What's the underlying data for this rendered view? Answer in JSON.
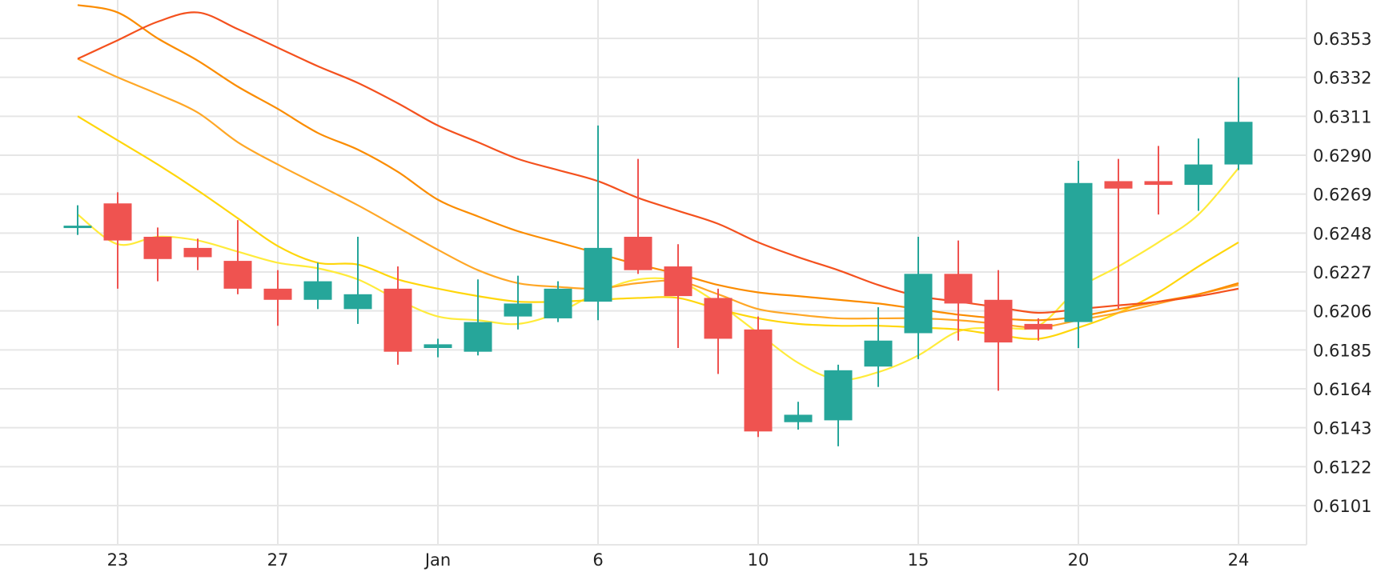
{
  "chart_data": {
    "type": "candlestick",
    "title": "",
    "xlabel": "",
    "ylabel": "",
    "ylim": [
      0.608,
      0.637
    ],
    "grid": true,
    "y_axis_position": "right",
    "y_ticks": [
      "0.6353",
      "0.6332",
      "0.6311",
      "0.6290",
      "0.6269",
      "0.6248",
      "0.6227",
      "0.6206",
      "0.6185",
      "0.6164",
      "0.6143",
      "0.6122",
      "0.6101"
    ],
    "x_tick_labels": [
      {
        "slot": 1,
        "label": "23"
      },
      {
        "slot": 5,
        "label": "27"
      },
      {
        "slot": 9,
        "label": "Jan"
      },
      {
        "slot": 13,
        "label": "6"
      },
      {
        "slot": 17,
        "label": "10"
      },
      {
        "slot": 21,
        "label": "15"
      },
      {
        "slot": 25,
        "label": "20"
      },
      {
        "slot": 29,
        "label": "24"
      }
    ],
    "slot_count": 30,
    "colors": {
      "up": "#26a69a",
      "down": "#ef5350",
      "grid": "#e6e6e6",
      "text": "#222222"
    },
    "candles": [
      {
        "slot": 0,
        "open": 0.6252,
        "high": 0.6263,
        "low": 0.6247,
        "close": 0.6252
      },
      {
        "slot": 1,
        "open": 0.6264,
        "high": 0.627,
        "low": 0.6218,
        "close": 0.6244
      },
      {
        "slot": 2,
        "open": 0.6246,
        "high": 0.6251,
        "low": 0.6222,
        "close": 0.6234
      },
      {
        "slot": 3,
        "open": 0.624,
        "high": 0.6245,
        "low": 0.6228,
        "close": 0.6235
      },
      {
        "slot": 4,
        "open": 0.6233,
        "high": 0.6255,
        "low": 0.6215,
        "close": 0.6218
      },
      {
        "slot": 5,
        "open": 0.6218,
        "high": 0.6228,
        "low": 0.6198,
        "close": 0.6212
      },
      {
        "slot": 6,
        "open": 0.6212,
        "high": 0.6232,
        "low": 0.6207,
        "close": 0.6222
      },
      {
        "slot": 7,
        "open": 0.6207,
        "high": 0.6246,
        "low": 0.6199,
        "close": 0.6215
      },
      {
        "slot": 8,
        "open": 0.6218,
        "high": 0.623,
        "low": 0.6177,
        "close": 0.6184
      },
      {
        "slot": 9,
        "open": 0.6186,
        "high": 0.6191,
        "low": 0.6181,
        "close": 0.6188
      },
      {
        "slot": 10,
        "open": 0.6184,
        "high": 0.6223,
        "low": 0.6182,
        "close": 0.62
      },
      {
        "slot": 11,
        "open": 0.6203,
        "high": 0.6225,
        "low": 0.6196,
        "close": 0.621
      },
      {
        "slot": 12,
        "open": 0.6202,
        "high": 0.6222,
        "low": 0.62,
        "close": 0.6218
      },
      {
        "slot": 13,
        "open": 0.6211,
        "high": 0.6306,
        "low": 0.6201,
        "close": 0.624
      },
      {
        "slot": 14,
        "open": 0.6246,
        "high": 0.6288,
        "low": 0.6226,
        "close": 0.6228
      },
      {
        "slot": 15,
        "open": 0.623,
        "high": 0.6242,
        "low": 0.6186,
        "close": 0.6214
      },
      {
        "slot": 16,
        "open": 0.6213,
        "high": 0.6218,
        "low": 0.6172,
        "close": 0.6191
      },
      {
        "slot": 17,
        "open": 0.6196,
        "high": 0.6203,
        "low": 0.6138,
        "close": 0.6141
      },
      {
        "slot": 18,
        "open": 0.6146,
        "high": 0.6157,
        "low": 0.6142,
        "close": 0.615
      },
      {
        "slot": 19,
        "open": 0.6147,
        "high": 0.6177,
        "low": 0.6133,
        "close": 0.6174
      },
      {
        "slot": 20,
        "open": 0.6176,
        "high": 0.6208,
        "low": 0.6165,
        "close": 0.619
      },
      {
        "slot": 21,
        "open": 0.6194,
        "high": 0.6246,
        "low": 0.618,
        "close": 0.6226
      },
      {
        "slot": 22,
        "open": 0.6226,
        "high": 0.6244,
        "low": 0.619,
        "close": 0.621
      },
      {
        "slot": 23,
        "open": 0.6212,
        "high": 0.6228,
        "low": 0.6163,
        "close": 0.6189
      },
      {
        "slot": 24,
        "open": 0.6199,
        "high": 0.6202,
        "low": 0.619,
        "close": 0.6196
      },
      {
        "slot": 25,
        "open": 0.62,
        "high": 0.6287,
        "low": 0.6186,
        "close": 0.6275
      },
      {
        "slot": 26,
        "open": 0.6276,
        "high": 0.6288,
        "low": 0.6207,
        "close": 0.6272
      },
      {
        "slot": 27,
        "open": 0.6276,
        "high": 0.6295,
        "low": 0.6258,
        "close": 0.6274
      },
      {
        "slot": 28,
        "open": 0.6274,
        "high": 0.6299,
        "low": 0.626,
        "close": 0.6285
      },
      {
        "slot": 29,
        "open": 0.6285,
        "high": 0.6332,
        "low": 0.6282,
        "close": 0.6308
      }
    ],
    "lines": [
      {
        "color": "#ffeb3b",
        "values": [
          [
            0,
            0.6258
          ],
          [
            1,
            0.6242
          ],
          [
            2,
            0.6246
          ],
          [
            3,
            0.6244
          ],
          [
            4,
            0.6238
          ],
          [
            5,
            0.6232
          ],
          [
            6,
            0.6229
          ],
          [
            7,
            0.6223
          ],
          [
            8,
            0.6212
          ],
          [
            9,
            0.6203
          ],
          [
            10,
            0.6201
          ],
          [
            11,
            0.6199
          ],
          [
            12,
            0.6205
          ],
          [
            13,
            0.6216
          ],
          [
            14,
            0.6223
          ],
          [
            15,
            0.6222
          ],
          [
            16,
            0.621
          ],
          [
            17,
            0.6194
          ],
          [
            18,
            0.6178
          ],
          [
            19,
            0.6169
          ],
          [
            20,
            0.6173
          ],
          [
            21,
            0.6182
          ],
          [
            22,
            0.6195
          ],
          [
            23,
            0.6197
          ],
          [
            24,
            0.6198
          ],
          [
            25,
            0.6218
          ],
          [
            26,
            0.623
          ],
          [
            27,
            0.6243
          ],
          [
            28,
            0.6258
          ],
          [
            29,
            0.6283
          ]
        ]
      },
      {
        "color": "#ffd60a",
        "values": [
          [
            0,
            0.6311
          ],
          [
            1,
            0.6298
          ],
          [
            2,
            0.6285
          ],
          [
            3,
            0.6271
          ],
          [
            4,
            0.6256
          ],
          [
            5,
            0.6241
          ],
          [
            6,
            0.6232
          ],
          [
            7,
            0.6231
          ],
          [
            8,
            0.6223
          ],
          [
            9,
            0.6218
          ],
          [
            10,
            0.6214
          ],
          [
            11,
            0.6211
          ],
          [
            12,
            0.6211
          ],
          [
            13,
            0.6212
          ],
          [
            14,
            0.6213
          ],
          [
            15,
            0.6213
          ],
          [
            16,
            0.6207
          ],
          [
            17,
            0.6202
          ],
          [
            18,
            0.6199
          ],
          [
            19,
            0.6198
          ],
          [
            20,
            0.6198
          ],
          [
            21,
            0.6197
          ],
          [
            22,
            0.6196
          ],
          [
            23,
            0.6193
          ],
          [
            24,
            0.6191
          ],
          [
            25,
            0.6197
          ],
          [
            26,
            0.6205
          ],
          [
            27,
            0.6216
          ],
          [
            28,
            0.623
          ],
          [
            29,
            0.6243
          ]
        ]
      },
      {
        "color": "#ffa726",
        "values": [
          [
            0,
            0.6342
          ],
          [
            1,
            0.6332
          ],
          [
            2,
            0.6323
          ],
          [
            3,
            0.6313
          ],
          [
            4,
            0.6297
          ],
          [
            5,
            0.6285
          ],
          [
            6,
            0.6274
          ],
          [
            7,
            0.6263
          ],
          [
            8,
            0.6251
          ],
          [
            9,
            0.6239
          ],
          [
            10,
            0.6228
          ],
          [
            11,
            0.6221
          ],
          [
            12,
            0.6219
          ],
          [
            13,
            0.6218
          ],
          [
            14,
            0.6221
          ],
          [
            15,
            0.6222
          ],
          [
            16,
            0.6215
          ],
          [
            17,
            0.6207
          ],
          [
            18,
            0.6204
          ],
          [
            19,
            0.6202
          ],
          [
            20,
            0.6202
          ],
          [
            21,
            0.6202
          ],
          [
            22,
            0.6201
          ],
          [
            23,
            0.6199
          ],
          [
            24,
            0.6197
          ],
          [
            25,
            0.6201
          ],
          [
            26,
            0.6205
          ],
          [
            27,
            0.621
          ],
          [
            28,
            0.6215
          ],
          [
            29,
            0.622
          ]
        ]
      },
      {
        "color": "#fb8c00",
        "values": [
          [
            0,
            0.6371
          ],
          [
            1,
            0.6367
          ],
          [
            2,
            0.6353
          ],
          [
            3,
            0.6341
          ],
          [
            4,
            0.6327
          ],
          [
            5,
            0.6315
          ],
          [
            6,
            0.6302
          ],
          [
            7,
            0.6293
          ],
          [
            8,
            0.6281
          ],
          [
            9,
            0.6266
          ],
          [
            10,
            0.6257
          ],
          [
            11,
            0.6249
          ],
          [
            12,
            0.6243
          ],
          [
            13,
            0.6237
          ],
          [
            14,
            0.6231
          ],
          [
            15,
            0.6226
          ],
          [
            16,
            0.622
          ],
          [
            17,
            0.6216
          ],
          [
            18,
            0.6214
          ],
          [
            19,
            0.6212
          ],
          [
            20,
            0.621
          ],
          [
            21,
            0.6207
          ],
          [
            22,
            0.6204
          ],
          [
            23,
            0.6202
          ],
          [
            24,
            0.6201
          ],
          [
            25,
            0.6203
          ],
          [
            26,
            0.6207
          ],
          [
            27,
            0.6211
          ],
          [
            28,
            0.6215
          ],
          [
            29,
            0.6221
          ]
        ]
      },
      {
        "color": "#f4511e",
        "values": [
          [
            0,
            0.6342
          ],
          [
            1,
            0.6352
          ],
          [
            2,
            0.6362
          ],
          [
            3,
            0.6367
          ],
          [
            4,
            0.6358
          ],
          [
            5,
            0.6348
          ],
          [
            6,
            0.6338
          ],
          [
            7,
            0.6329
          ],
          [
            8,
            0.6318
          ],
          [
            9,
            0.6306
          ],
          [
            10,
            0.6297
          ],
          [
            11,
            0.6288
          ],
          [
            12,
            0.6282
          ],
          [
            13,
            0.6276
          ],
          [
            14,
            0.6267
          ],
          [
            15,
            0.626
          ],
          [
            16,
            0.6253
          ],
          [
            17,
            0.6243
          ],
          [
            18,
            0.6235
          ],
          [
            19,
            0.6228
          ],
          [
            20,
            0.622
          ],
          [
            21,
            0.6214
          ],
          [
            22,
            0.6211
          ],
          [
            23,
            0.6208
          ],
          [
            24,
            0.6205
          ],
          [
            25,
            0.6207
          ],
          [
            26,
            0.6209
          ],
          [
            27,
            0.6211
          ],
          [
            28,
            0.6214
          ],
          [
            29,
            0.6218
          ]
        ]
      }
    ]
  }
}
